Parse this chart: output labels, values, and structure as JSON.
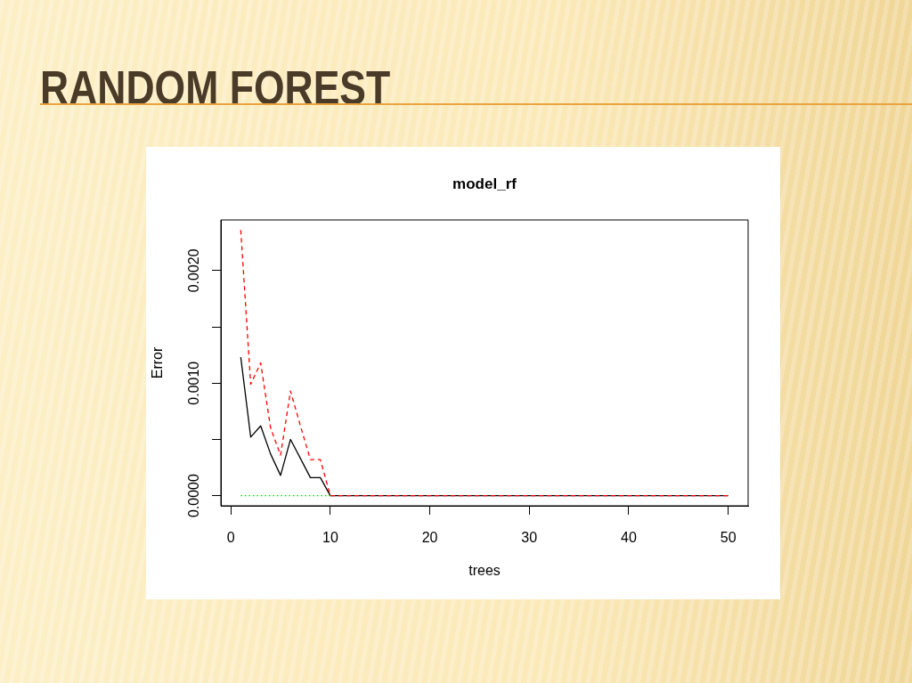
{
  "chart_data": {
    "type": "line",
    "title": "RANDOM FOREST",
    "subtitle": "model_rf",
    "xlabel": "trees",
    "ylabel": "Error",
    "x": [
      1,
      2,
      3,
      4,
      5,
      6,
      7,
      8,
      9,
      10,
      11,
      12,
      13,
      14,
      15,
      16,
      17,
      18,
      19,
      20,
      21,
      22,
      23,
      24,
      25,
      26,
      27,
      28,
      29,
      30,
      31,
      32,
      33,
      34,
      35,
      36,
      37,
      38,
      39,
      40,
      41,
      42,
      43,
      44,
      45,
      46,
      47,
      48,
      49,
      50
    ],
    "series": [
      {
        "color": "#000000",
        "line_style": "solid",
        "values": [
          0.00123,
          0.00052,
          0.00062,
          0.00037,
          0.00018,
          0.0005,
          0.00033,
          0.00016,
          0.00016,
          0,
          0,
          0,
          0,
          0,
          0,
          0,
          0,
          0,
          0,
          0,
          0,
          0,
          0,
          0,
          0,
          0,
          0,
          0,
          0,
          0,
          0,
          0,
          0,
          0,
          0,
          0,
          0,
          0,
          0,
          0,
          0,
          0,
          0,
          0,
          0,
          0,
          0,
          0,
          0,
          0
        ]
      },
      {
        "color": "#ff0000",
        "line_style": "dashed",
        "values": [
          0.00236,
          0.00099,
          0.00118,
          0.0006,
          0.00036,
          0.00093,
          0.00062,
          0.00032,
          0.00032,
          0,
          0,
          0,
          0,
          0,
          0,
          0,
          0,
          0,
          0,
          0,
          0,
          0,
          0,
          0,
          0,
          0,
          0,
          0,
          0,
          0,
          0,
          0,
          0,
          0,
          0,
          0,
          0,
          0,
          0,
          0,
          0,
          0,
          0,
          0,
          0,
          0,
          0,
          0,
          0,
          0
        ]
      },
      {
        "color": "#00cd00",
        "line_style": "dotted",
        "values": [
          0,
          0,
          0,
          0,
          0,
          0,
          0,
          0,
          0,
          0,
          null,
          null,
          null,
          null,
          null,
          null,
          null,
          null,
          null,
          null,
          null,
          null,
          null,
          null,
          null,
          null,
          null,
          null,
          null,
          null,
          null,
          null,
          null,
          null,
          null,
          null,
          null,
          null,
          null,
          null,
          null,
          null,
          null,
          null,
          null,
          null,
          null,
          null,
          null,
          null
        ]
      }
    ],
    "xlim": [
      -1,
      52
    ],
    "xticks": [
      0,
      10,
      20,
      30,
      40,
      50
    ],
    "ylim": [
      -9e-05,
      0.00245
    ],
    "yticks": [
      {
        "value": 0,
        "label": "0.0000"
      },
      {
        "value": 0.0005,
        "label": null
      },
      {
        "value": 0.001,
        "label": "0.0010"
      },
      {
        "value": 0.0015,
        "label": null
      },
      {
        "value": 0.002,
        "label": "0.0020"
      }
    ],
    "grid": false,
    "legend": false,
    "marker": "none"
  }
}
